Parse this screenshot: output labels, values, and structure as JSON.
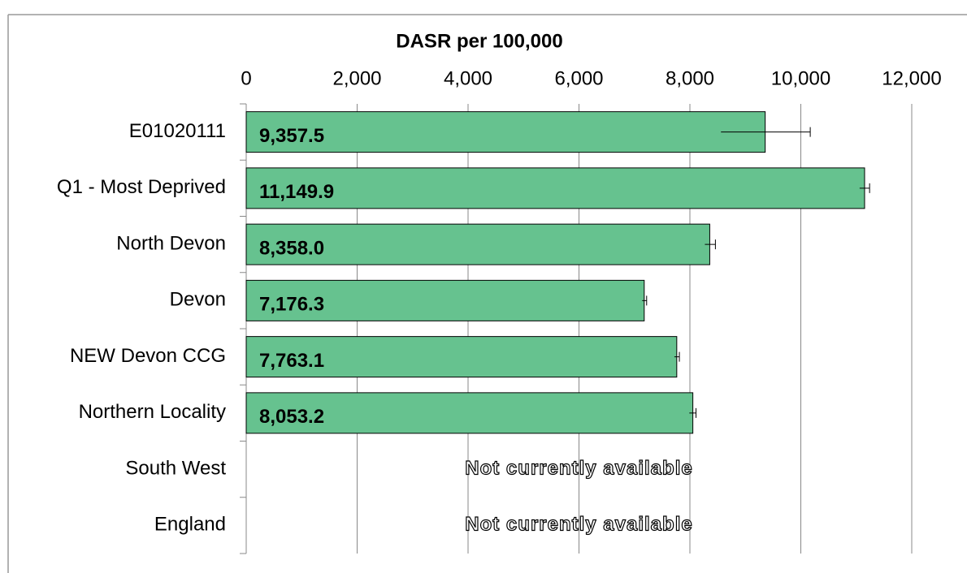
{
  "chart_data": {
    "type": "bar",
    "orientation": "horizontal",
    "title": "DASR per 100,000",
    "categories": [
      "E01020111",
      "Q1 - Most Deprived",
      "North Devon",
      "Devon",
      "NEW Devon CCG",
      "Northern Locality",
      "South West",
      "England"
    ],
    "values": [
      9357.5,
      11149.9,
      8358.0,
      7176.3,
      7763.1,
      8053.2,
      null,
      null
    ],
    "value_labels": [
      "9,357.5",
      "11,149.9",
      "8,358.0",
      "7,176.3",
      "7,763.1",
      "8,053.2",
      "Not currently available",
      "Not currently available"
    ],
    "error_low": [
      8560,
      11060,
      8270,
      7140,
      7720,
      7990,
      null,
      null
    ],
    "error_high": [
      10170,
      11240,
      8460,
      7220,
      7810,
      8110,
      null,
      null
    ],
    "color": "#66c28f",
    "xlim": [
      0,
      12000
    ],
    "xticks": [
      0,
      {
        "value": 2000,
        "label": "2,000"
      },
      {
        "value": 4000,
        "label": "4,000"
      },
      {
        "value": 6000,
        "label": "6,000"
      },
      {
        "value": 8000,
        "label": "8,000"
      },
      {
        "value": 10000,
        "label": "10,000"
      },
      {
        "value": 12000,
        "label": "12,000"
      }
    ],
    "grid": true
  }
}
